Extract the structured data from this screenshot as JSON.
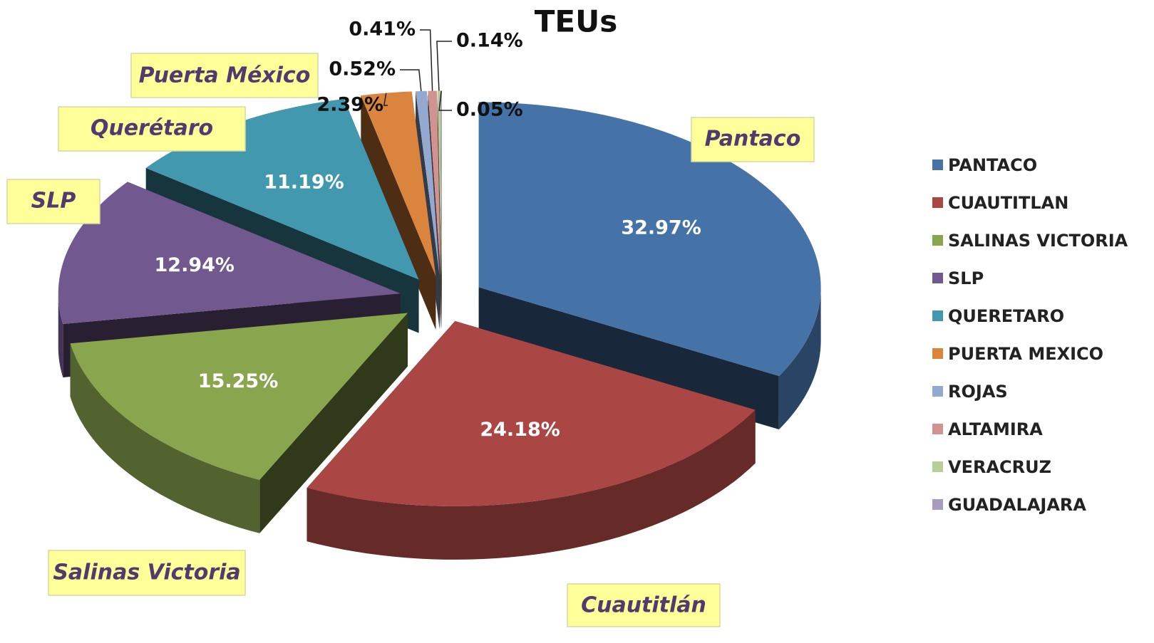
{
  "chart_data": {
    "type": "pie3d",
    "title": "TEUs",
    "categories": [
      "PANTACO",
      "CUAUTITLAN",
      "SALINAS VICTORIA",
      "SLP",
      "QUERETARO",
      "PUERTA MEXICO",
      "ROJAS",
      "ALTAMIRA",
      "VERACRUZ",
      "GUADALAJARA"
    ],
    "values": [
      32.97,
      24.18,
      15.25,
      12.94,
      11.19,
      2.39,
      0.52,
      0.41,
      0.14,
      0.05
    ],
    "value_labels": [
      "32.97%",
      "24.18%",
      "15.25%",
      "12.94%",
      "11.19%",
      "2.39%",
      "0.52%",
      "0.41%",
      "0.14%",
      "0.05%"
    ],
    "colors": [
      "#4572a7",
      "#aa4643",
      "#89a54e",
      "#71588f",
      "#4198af",
      "#db843d",
      "#93a9cf",
      "#d19392",
      "#b9cd96",
      "#a99bbd"
    ],
    "annotations": [
      "Pantaco",
      "Cuautitlán",
      "Salinas Victoria",
      "SLP",
      "Querétaro",
      "Puerta México"
    ],
    "legend": "right"
  }
}
